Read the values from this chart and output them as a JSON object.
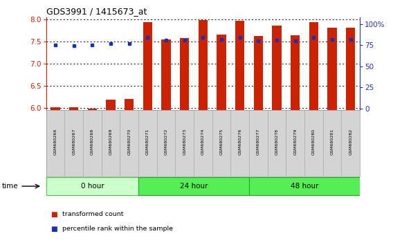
{
  "title": "GDS3991 / 1415673_at",
  "samples": [
    "GSM680266",
    "GSM680267",
    "GSM680268",
    "GSM680269",
    "GSM680270",
    "GSM680271",
    "GSM680272",
    "GSM680273",
    "GSM680274",
    "GSM680275",
    "GSM680276",
    "GSM680277",
    "GSM680278",
    "GSM680279",
    "GSM680280",
    "GSM680281",
    "GSM680282"
  ],
  "groups": [
    {
      "label": "0 hour",
      "start": 0,
      "end": 4,
      "color": "#ccffcc",
      "border": "#44cc44"
    },
    {
      "label": "24 hour",
      "start": 5,
      "end": 10,
      "color": "#55ee55",
      "border": "#22aa22"
    },
    {
      "label": "48 hour",
      "start": 11,
      "end": 16,
      "color": "#55ee55",
      "border": "#22aa22"
    }
  ],
  "transformed_count": [
    6.02,
    6.02,
    5.99,
    6.19,
    6.2,
    7.93,
    7.55,
    7.58,
    7.99,
    7.66,
    7.97,
    7.62,
    7.86,
    7.64,
    7.93,
    7.82,
    7.82
  ],
  "percentile_rank": [
    75,
    74,
    75,
    77,
    77,
    84,
    81,
    81,
    84,
    82,
    84,
    80,
    81,
    80,
    84,
    82,
    82
  ],
  "ylim_left": [
    5.95,
    8.05
  ],
  "ylim_right": [
    -2,
    108
  ],
  "yticks_left": [
    6.0,
    6.5,
    7.0,
    7.5,
    8.0
  ],
  "yticks_right": [
    0,
    25,
    50,
    75,
    100
  ],
  "bar_color": "#cc2200",
  "dot_color": "#1133bb",
  "axis_color_left": "#cc2200",
  "axis_color_right": "#2233bb",
  "bar_width": 0.5,
  "baseline": 5.95
}
